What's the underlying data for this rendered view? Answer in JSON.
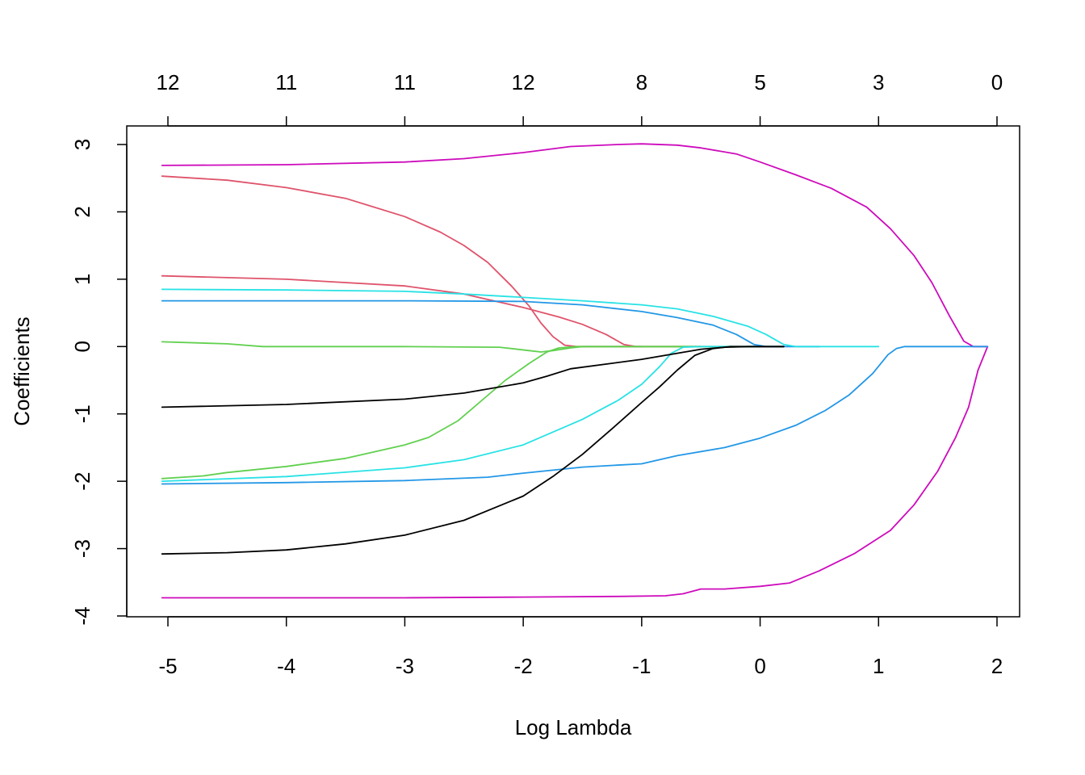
{
  "chart_data": {
    "type": "line",
    "xlabel": "Log Lambda",
    "ylabel": "Coefficients",
    "xlim": [
      -5.34,
      2.2
    ],
    "ylim": [
      -4.0,
      3.3
    ],
    "x_ticks": [
      -5,
      -4,
      -3,
      -2,
      -1,
      0,
      1,
      2
    ],
    "x_tick_labels": [
      "-5",
      "-4",
      "-3",
      "-2",
      "-1",
      "0",
      "1",
      "2"
    ],
    "y_ticks": [
      -4,
      -3,
      -2,
      -1,
      0,
      1,
      2,
      3
    ],
    "y_tick_labels": [
      "-4",
      "-3",
      "-2",
      "-1",
      "0",
      "1",
      "2",
      "3"
    ],
    "top_axis": {
      "x": [
        -5,
        -4,
        -3,
        -2,
        -1,
        0,
        1,
        2
      ],
      "labels": [
        "12",
        "11",
        "11",
        "12",
        "8",
        "5",
        "3",
        "0"
      ]
    },
    "grid": false,
    "series": [
      {
        "color": "#CD0BBC",
        "points": [
          [
            -5.05,
            2.69
          ],
          [
            -4,
            2.7
          ],
          [
            -3,
            2.74
          ],
          [
            -2.5,
            2.79
          ],
          [
            -2,
            2.88
          ],
          [
            -1.6,
            2.97
          ],
          [
            -1.2,
            3.0
          ],
          [
            -1.0,
            3.01
          ],
          [
            -0.7,
            2.99
          ],
          [
            -0.5,
            2.95
          ],
          [
            -0.2,
            2.86
          ],
          [
            0,
            2.74
          ],
          [
            0.3,
            2.55
          ],
          [
            0.6,
            2.35
          ],
          [
            0.9,
            2.07
          ],
          [
            1.1,
            1.75
          ],
          [
            1.3,
            1.35
          ],
          [
            1.45,
            0.95
          ],
          [
            1.6,
            0.45
          ],
          [
            1.72,
            0.08
          ],
          [
            1.8,
            0.0
          ],
          [
            1.92,
            0.0
          ]
        ]
      },
      {
        "color": "#CD0BBC",
        "points": [
          [
            -5.05,
            -3.73
          ],
          [
            -4,
            -3.73
          ],
          [
            -3,
            -3.73
          ],
          [
            -2,
            -3.72
          ],
          [
            -1.2,
            -3.71
          ],
          [
            -0.8,
            -3.7
          ],
          [
            -0.65,
            -3.67
          ],
          [
            -0.5,
            -3.6
          ],
          [
            -0.3,
            -3.6
          ],
          [
            0,
            -3.56
          ],
          [
            0.25,
            -3.51
          ],
          [
            0.5,
            -3.33
          ],
          [
            0.8,
            -3.07
          ],
          [
            1.1,
            -2.73
          ],
          [
            1.3,
            -2.35
          ],
          [
            1.5,
            -1.85
          ],
          [
            1.65,
            -1.35
          ],
          [
            1.76,
            -0.9
          ],
          [
            1.84,
            -0.35
          ],
          [
            1.92,
            0.0
          ]
        ]
      },
      {
        "color": "#DF536B",
        "points": [
          [
            -5.05,
            2.53
          ],
          [
            -4.5,
            2.47
          ],
          [
            -4,
            2.36
          ],
          [
            -3.5,
            2.2
          ],
          [
            -3,
            1.93
          ],
          [
            -2.7,
            1.7
          ],
          [
            -2.5,
            1.5
          ],
          [
            -2.3,
            1.25
          ],
          [
            -2.1,
            0.9
          ],
          [
            -1.95,
            0.6
          ],
          [
            -1.85,
            0.35
          ],
          [
            -1.75,
            0.15
          ],
          [
            -1.65,
            0.02
          ],
          [
            -1.55,
            0.0
          ],
          [
            -1.0,
            0.0
          ]
        ]
      },
      {
        "color": "#DF536B",
        "points": [
          [
            -5.05,
            1.05
          ],
          [
            -4,
            1.0
          ],
          [
            -3,
            0.9
          ],
          [
            -2.5,
            0.78
          ],
          [
            -2,
            0.58
          ],
          [
            -1.7,
            0.44
          ],
          [
            -1.5,
            0.33
          ],
          [
            -1.3,
            0.18
          ],
          [
            -1.15,
            0.03
          ],
          [
            -1.05,
            0.0
          ],
          [
            -0.5,
            0.0
          ]
        ]
      },
      {
        "color": "#61D04F",
        "points": [
          [
            -5.05,
            0.07
          ],
          [
            -4.5,
            0.04
          ],
          [
            -4.2,
            0.0
          ],
          [
            -3.0,
            0.0
          ],
          [
            -2.2,
            -0.01
          ],
          [
            -1.95,
            -0.06
          ],
          [
            -1.85,
            -0.08
          ],
          [
            -1.75,
            -0.06
          ],
          [
            -1.6,
            -0.02
          ],
          [
            -1.5,
            0.0
          ],
          [
            0.0,
            0.0
          ]
        ]
      },
      {
        "color": "#61D04F",
        "points": [
          [
            -5.05,
            -1.96
          ],
          [
            -4.7,
            -1.92
          ],
          [
            -4.5,
            -1.87
          ],
          [
            -4,
            -1.78
          ],
          [
            -3.5,
            -1.66
          ],
          [
            -3,
            -1.46
          ],
          [
            -2.8,
            -1.35
          ],
          [
            -2.55,
            -1.1
          ],
          [
            -2.35,
            -0.8
          ],
          [
            -2.15,
            -0.5
          ],
          [
            -1.95,
            -0.25
          ],
          [
            -1.8,
            -0.08
          ],
          [
            -1.7,
            -0.02
          ],
          [
            -1.55,
            0.0
          ],
          [
            -0.5,
            0.0
          ]
        ]
      },
      {
        "color": "#2297E6",
        "points": [
          [
            -5.05,
            0.68
          ],
          [
            -4,
            0.68
          ],
          [
            -3,
            0.68
          ],
          [
            -2,
            0.67
          ],
          [
            -1.5,
            0.62
          ],
          [
            -1,
            0.52
          ],
          [
            -0.7,
            0.43
          ],
          [
            -0.4,
            0.32
          ],
          [
            -0.2,
            0.18
          ],
          [
            -0.05,
            0.03
          ],
          [
            0.05,
            0.0
          ],
          [
            0.5,
            0.0
          ]
        ]
      },
      {
        "color": "#2297E6",
        "points": [
          [
            -5.05,
            -2.04
          ],
          [
            -4,
            -2.02
          ],
          [
            -3,
            -1.99
          ],
          [
            -2.3,
            -1.94
          ],
          [
            -2,
            -1.88
          ],
          [
            -1.5,
            -1.79
          ],
          [
            -1,
            -1.74
          ],
          [
            -0.7,
            -1.62
          ],
          [
            -0.3,
            -1.5
          ],
          [
            0,
            -1.36
          ],
          [
            0.3,
            -1.17
          ],
          [
            0.55,
            -0.95
          ],
          [
            0.75,
            -0.72
          ],
          [
            0.95,
            -0.4
          ],
          [
            1.08,
            -0.12
          ],
          [
            1.15,
            -0.03
          ],
          [
            1.22,
            0.0
          ],
          [
            1.92,
            0.0
          ]
        ]
      },
      {
        "color": "#28E2E5",
        "points": [
          [
            -5.05,
            0.85
          ],
          [
            -4,
            0.84
          ],
          [
            -3,
            0.82
          ],
          [
            -2.5,
            0.78
          ],
          [
            -2,
            0.73
          ],
          [
            -1.5,
            0.68
          ],
          [
            -1,
            0.62
          ],
          [
            -0.7,
            0.56
          ],
          [
            -0.4,
            0.45
          ],
          [
            -0.1,
            0.3
          ],
          [
            0.05,
            0.18
          ],
          [
            0.2,
            0.03
          ],
          [
            0.3,
            0.0
          ],
          [
            1.0,
            0.0
          ]
        ]
      },
      {
        "color": "#28E2E5",
        "points": [
          [
            -5.05,
            -2.0
          ],
          [
            -4,
            -1.93
          ],
          [
            -3,
            -1.8
          ],
          [
            -2.5,
            -1.68
          ],
          [
            -2,
            -1.46
          ],
          [
            -1.5,
            -1.08
          ],
          [
            -1.2,
            -0.8
          ],
          [
            -1.0,
            -0.56
          ],
          [
            -0.85,
            -0.3
          ],
          [
            -0.75,
            -0.1
          ],
          [
            -0.65,
            -0.01
          ],
          [
            -0.5,
            0.0
          ],
          [
            0.2,
            0.0
          ]
        ]
      },
      {
        "color": "#000000",
        "points": [
          [
            -5.05,
            -0.9
          ],
          [
            -4,
            -0.86
          ],
          [
            -3,
            -0.78
          ],
          [
            -2.5,
            -0.69
          ],
          [
            -2,
            -0.54
          ],
          [
            -1.8,
            -0.44
          ],
          [
            -1.6,
            -0.33
          ],
          [
            -1.3,
            -0.26
          ],
          [
            -1.0,
            -0.19
          ],
          [
            -0.7,
            -0.1
          ],
          [
            -0.5,
            -0.04
          ],
          [
            -0.3,
            -0.01
          ],
          [
            -0.1,
            0.0
          ],
          [
            0.2,
            0.0
          ]
        ]
      },
      {
        "color": "#000000",
        "points": [
          [
            -5.05,
            -3.08
          ],
          [
            -4.5,
            -3.06
          ],
          [
            -4,
            -3.02
          ],
          [
            -3.5,
            -2.93
          ],
          [
            -3,
            -2.8
          ],
          [
            -2.5,
            -2.58
          ],
          [
            -2,
            -2.22
          ],
          [
            -1.75,
            -1.93
          ],
          [
            -1.5,
            -1.6
          ],
          [
            -1.25,
            -1.22
          ],
          [
            -1.0,
            -0.83
          ],
          [
            -0.85,
            -0.6
          ],
          [
            -0.7,
            -0.35
          ],
          [
            -0.55,
            -0.13
          ],
          [
            -0.4,
            -0.03
          ],
          [
            -0.25,
            0.0
          ],
          [
            0.2,
            0.0
          ]
        ]
      }
    ]
  }
}
